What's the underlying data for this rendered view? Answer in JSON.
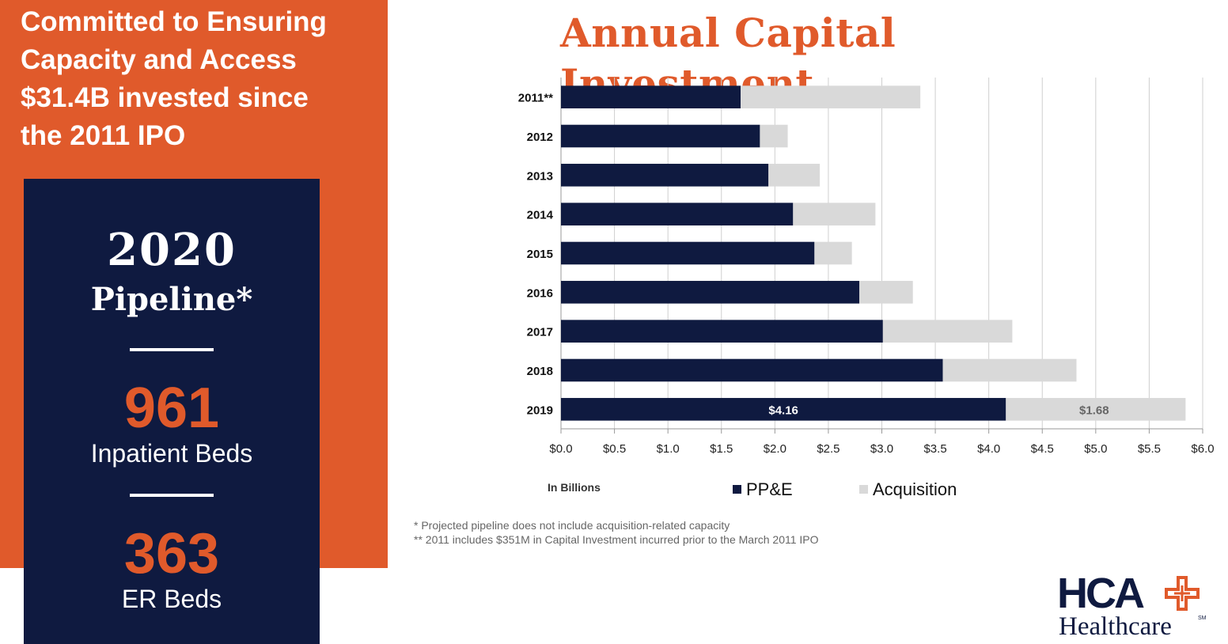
{
  "headline": {
    "lines": [
      "Committed to Ensuring",
      "Capacity and Access",
      "$31.4B invested since",
      "the 2011 IPO"
    ]
  },
  "pipeline": {
    "year": "2020",
    "label": "Pipeline*",
    "inpatient_beds": "961",
    "inpatient_label": "Inpatient Beds",
    "er_beds": "363",
    "er_label": "ER Beds"
  },
  "footnotes": [
    "* Projected pipeline does not include acquisition-related capacity",
    "** 2011 includes $351M in Capital Investment incurred prior to the March 2011 IPO"
  ],
  "logo": {
    "top": "HCA",
    "bottom": "Healthcare",
    "mark": "SM"
  },
  "colors": {
    "orange": "#e05a2b",
    "navy": "#0f1a40",
    "gray": "#d9d9d9"
  },
  "chart_data": {
    "type": "bar",
    "orientation": "horizontal",
    "stacked": true,
    "title": "Annual Capital Investment",
    "units_label": "In Billions",
    "categories": [
      "2011**",
      "2012",
      "2013",
      "2014",
      "2015",
      "2016",
      "2017",
      "2018",
      "2019"
    ],
    "series": [
      {
        "name": "PP&E",
        "color": "#0f1a40",
        "values": [
          1.68,
          1.86,
          1.94,
          2.17,
          2.37,
          2.79,
          3.01,
          3.57,
          4.16
        ]
      },
      {
        "name": "Acquisition",
        "color": "#d9d9d9",
        "values": [
          1.68,
          0.26,
          0.48,
          0.77,
          0.35,
          0.5,
          1.21,
          1.25,
          1.68
        ]
      }
    ],
    "data_labels": {
      "category": "2019",
      "values": [
        "$4.16",
        "$1.68"
      ]
    },
    "xlim": [
      0,
      6
    ],
    "xticks": [
      "$0.0",
      "$0.5",
      "$1.0",
      "$1.5",
      "$2.0",
      "$2.5",
      "$3.0",
      "$3.5",
      "$4.0",
      "$4.5",
      "$5.0",
      "$5.5",
      "$6.0"
    ],
    "grid": true,
    "legend": "bottom"
  }
}
